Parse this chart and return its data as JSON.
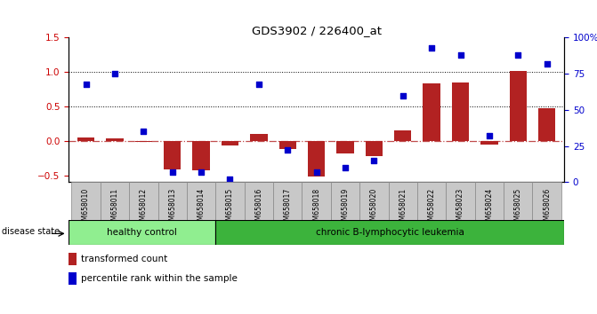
{
  "title": "GDS3902 / 226400_at",
  "samples": [
    "GSM658010",
    "GSM658011",
    "GSM658012",
    "GSM658013",
    "GSM658014",
    "GSM658015",
    "GSM658016",
    "GSM658017",
    "GSM658018",
    "GSM658019",
    "GSM658020",
    "GSM658021",
    "GSM658022",
    "GSM658023",
    "GSM658024",
    "GSM658025",
    "GSM658026"
  ],
  "transformed_count": [
    0.05,
    0.04,
    -0.02,
    -0.42,
    -0.43,
    -0.07,
    0.1,
    -0.12,
    -0.52,
    -0.18,
    -0.22,
    0.15,
    0.83,
    0.85,
    -0.05,
    1.02,
    0.48
  ],
  "percentile_rank": [
    68,
    75,
    35,
    7,
    7,
    2,
    68,
    22,
    7,
    10,
    15,
    60,
    93,
    88,
    32,
    88,
    82
  ],
  "healthy_control_count": 5,
  "disease_state_label": "disease state",
  "group1_label": "healthy control",
  "group2_label": "chronic B-lymphocytic leukemia",
  "legend_bar_label": "transformed count",
  "legend_dot_label": "percentile rank within the sample",
  "ylim_left": [
    -0.6,
    1.5
  ],
  "ylim_right": [
    0,
    100
  ],
  "yticks_left": [
    -0.5,
    0.0,
    0.5,
    1.0,
    1.5
  ],
  "yticks_right": [
    0,
    25,
    50,
    75,
    100
  ],
  "bar_color": "#b22222",
  "dot_color": "#0000cc",
  "healthy_bg": "#90ee90",
  "disease_bg": "#3cb33c",
  "tick_label_color_left": "#cc0000",
  "tick_label_color_right": "#0000cc",
  "sample_bg_color": "#c8c8c8",
  "border_color": "#888888"
}
